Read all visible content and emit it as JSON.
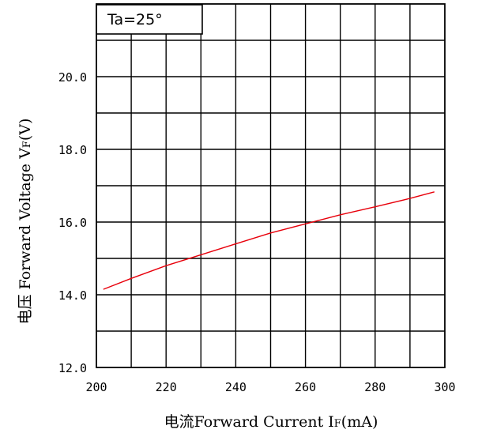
{
  "chart_data": {
    "type": "line",
    "title": "",
    "xlabel": "电流Forward Current I",
    "xlabel_sub": "F",
    "xlabel_unit": "(mA)",
    "ylabel": "电压 Forward Voltage V",
    "ylabel_sub": "F",
    "ylabel_unit": "(V)",
    "annotation": "Ta=25°",
    "xlim": [
      200,
      300
    ],
    "ylim": [
      12,
      22
    ],
    "x_ticks": [
      {
        "value": 200,
        "label": "200"
      },
      {
        "value": 220,
        "label": "220"
      },
      {
        "value": 240,
        "label": "240"
      },
      {
        "value": 260,
        "label": "260"
      },
      {
        "value": 280,
        "label": "280"
      },
      {
        "value": 300,
        "label": "300"
      }
    ],
    "y_ticks": [
      {
        "value": 12,
        "label": "12.0"
      },
      {
        "value": 14,
        "label": "14.0"
      },
      {
        "value": 16,
        "label": "16.0"
      },
      {
        "value": 18,
        "label": "18.0"
      },
      {
        "value": 20,
        "label": "20.0"
      }
    ],
    "grid": true,
    "grid_x_step": 10,
    "grid_y_step": 1,
    "series": [
      {
        "color": "#e8000b",
        "x": [
          202,
          210,
          220,
          230,
          240,
          250,
          260,
          270,
          280,
          290,
          297
        ],
        "y": [
          14.15,
          14.45,
          14.8,
          15.1,
          15.4,
          15.7,
          15.95,
          16.2,
          16.42,
          16.65,
          16.83
        ]
      }
    ]
  }
}
